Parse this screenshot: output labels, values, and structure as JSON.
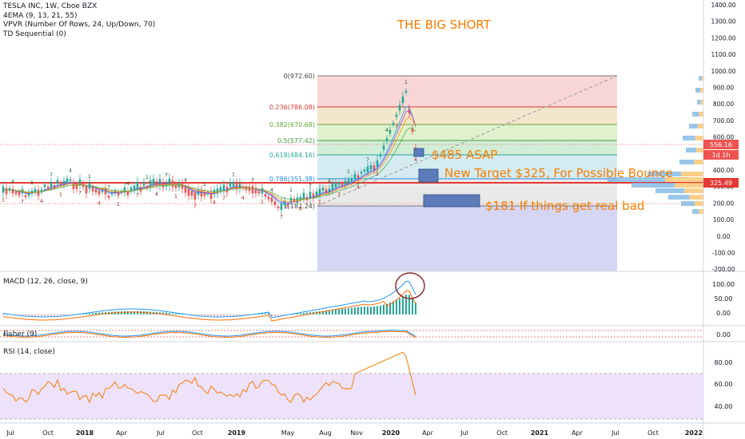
{
  "header": {
    "symbol_line": "TESLA INC, 1W, Cboe BZX",
    "indicators": [
      "4EMA (9, 13, 21, 55)",
      "VPVR (Number Of Rows, 24, Up/Down, 70)",
      "TD Sequential (0)"
    ]
  },
  "annotations": {
    "title": "THE BIG SHORT",
    "target1": "$485 ASAP",
    "target2": "New Target $325, For Possible Bounce",
    "target3": "$181 If things get real bad"
  },
  "fib_levels": [
    {
      "label": "0(972.60)",
      "color": "#444444"
    },
    {
      "label": "0.236(786.08)",
      "color": "#d93636"
    },
    {
      "label": "0.382(670.68)",
      "color": "#66a832"
    },
    {
      "label": "0.5(577.42)",
      "color": "#3f9c3f"
    },
    {
      "label": "0.618(484.16)",
      "color": "#26a69a"
    },
    {
      "label": "0.786(351.38)",
      "color": "#1e88e5"
    },
    {
      "label": "1(182.24)",
      "color": "#444444"
    }
  ],
  "price_axis": {
    "ticks": [
      "1400.00",
      "1300.00",
      "1200.00",
      "1100.00",
      "1000.00",
      "900.00",
      "800.00",
      "700.00",
      "600.00",
      "500.00",
      "400.00",
      "300.00",
      "200.00",
      "100.00",
      "0.00",
      "-100.00",
      "-200.00"
    ],
    "last_price": "556.16",
    "countdown": "1d 1h",
    "hline_price": "325.49",
    "last_price_color": "#ef5350",
    "hline_color": "#e53935"
  },
  "macd": {
    "label": "MACD (12, 26, close, 9)",
    "ticks": [
      "100.00",
      "50.00",
      "0.00"
    ]
  },
  "fisher": {
    "label": "Fisher (9)",
    "ticks": [
      "0.00"
    ]
  },
  "rsi": {
    "label": "RSI (14, close)",
    "ticks": [
      "80.00",
      "60.00",
      "40.00"
    ]
  },
  "time_axis": {
    "labels": [
      "Jul",
      "Oct",
      "2018",
      "Apr",
      "Jul",
      "Oct",
      "2019",
      "May",
      "Aug",
      "Nov",
      "2020",
      "Apr",
      "Jul",
      "Oct",
      "2021",
      "Apr",
      "Jul",
      "Oct",
      "2022"
    ]
  },
  "colors": {
    "bull": "#26a69a",
    "bear": "#ef5350",
    "annotation": "#f57c00",
    "rsi_line": "#f57c00",
    "rsi_band": "#e6d9f7"
  }
}
